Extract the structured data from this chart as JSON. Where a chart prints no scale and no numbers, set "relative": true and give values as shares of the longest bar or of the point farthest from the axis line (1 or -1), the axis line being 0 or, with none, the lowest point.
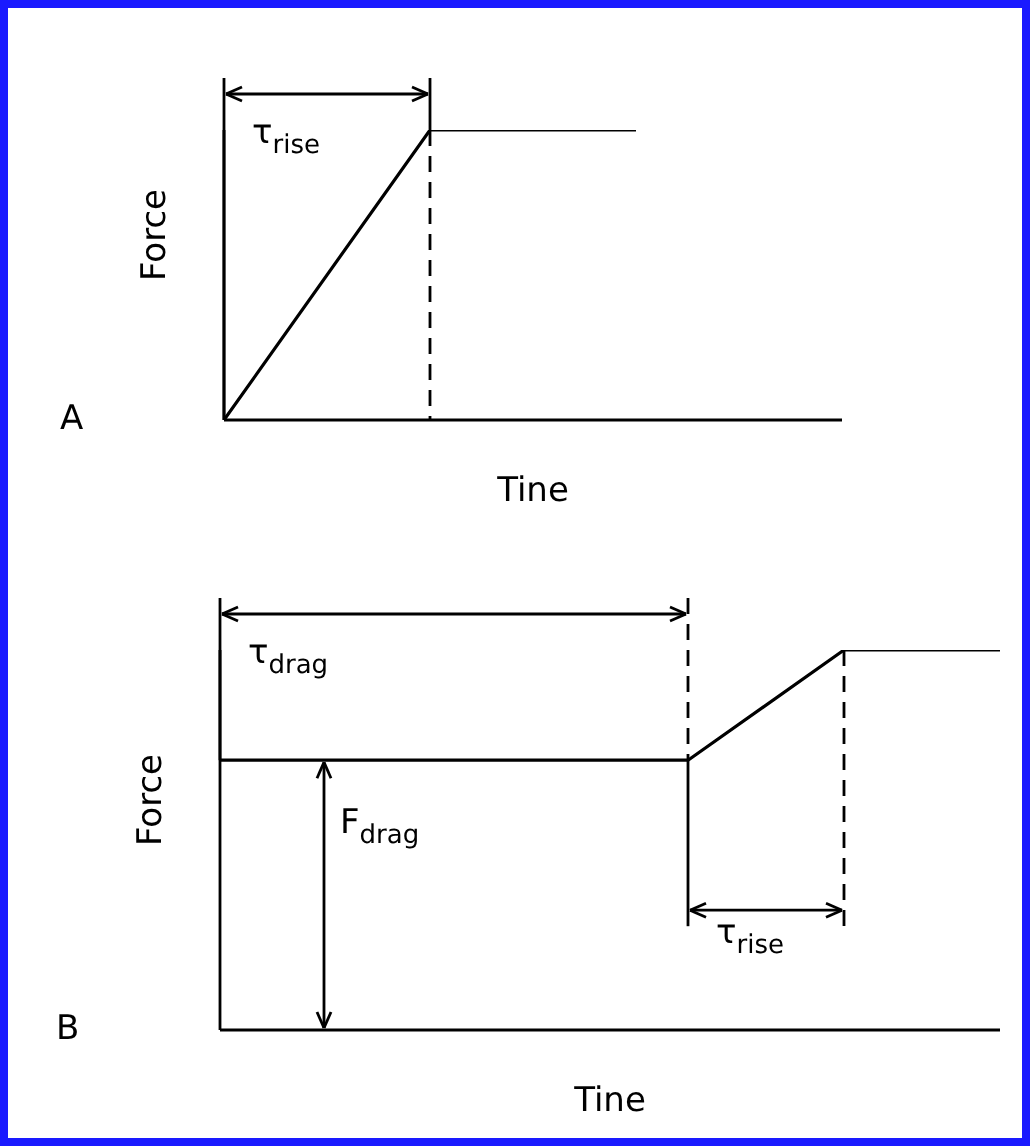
{
  "chart_data": [
    {
      "type": "line",
      "relative": true,
      "xlabel": "Tine",
      "ylabel": "Force",
      "categories": [
        null,
        null,
        null,
        null
      ],
      "values": [
        0,
        1,
        1,
        null
      ],
      "color": "#000000",
      "annotations": [
        "A",
        "τ$_{rise}$"
      ]
    },
    {
      "type": "line",
      "relative": true,
      "xlabel": "Tine",
      "ylabel": "Force",
      "categories": [
        null,
        null,
        null,
        null,
        null,
        null
      ],
      "values": [
        0.71,
        0.71,
        0.71,
        0.71,
        1,
        1
      ],
      "color": "#000000",
      "annotations": [
        "B",
        "τ$_{drag}$",
        "F$_{drag}$",
        "τ$_{rise}$"
      ]
    }
  ]
}
